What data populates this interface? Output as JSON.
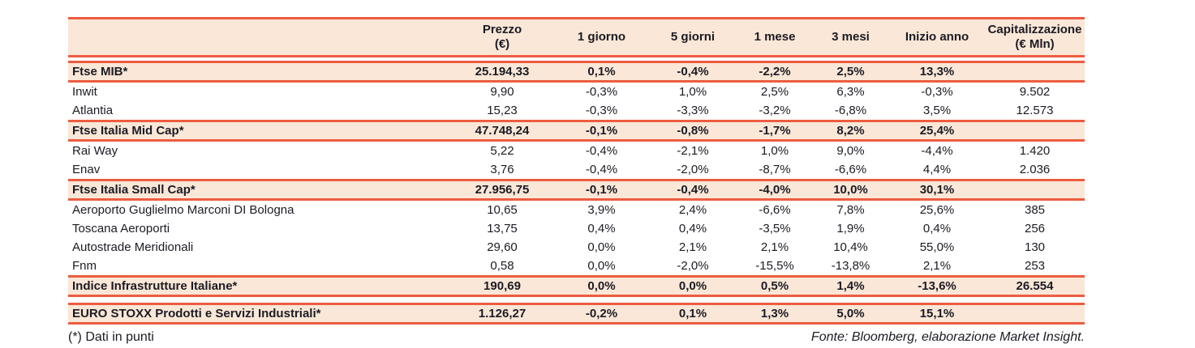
{
  "colors": {
    "accent_line": "#ed5c40",
    "band_background": "#fae7d7",
    "text": "#1b1b24"
  },
  "table": {
    "columns": [
      {
        "key": "name",
        "label": "",
        "sub": ""
      },
      {
        "key": "prezzo",
        "label": "Prezzo",
        "sub": "(€)"
      },
      {
        "key": "d1",
        "label": "1 giorno",
        "sub": ""
      },
      {
        "key": "d5",
        "label": "5 giorni",
        "sub": ""
      },
      {
        "key": "m1",
        "label": "1 mese",
        "sub": ""
      },
      {
        "key": "m3",
        "label": "3 mesi",
        "sub": ""
      },
      {
        "key": "ytd",
        "label": "Inizio anno",
        "sub": ""
      },
      {
        "key": "cap",
        "label": "Capitalizzazione",
        "sub": "(€ Mln)"
      }
    ],
    "rows": [
      {
        "type": "index",
        "name": "Ftse MIB*",
        "prezzo": "25.194,33",
        "d1": "0,1%",
        "d5": "-0,4%",
        "m1": "-2,2%",
        "m3": "2,5%",
        "ytd": "13,3%",
        "cap": ""
      },
      {
        "type": "stock",
        "name": "Inwit",
        "prezzo": "9,90",
        "d1": "-0,3%",
        "d5": "1,0%",
        "m1": "2,5%",
        "m3": "6,3%",
        "ytd": "-0,3%",
        "cap": "9.502"
      },
      {
        "type": "stock",
        "name": "Atlantia",
        "prezzo": "15,23",
        "d1": "-0,3%",
        "d5": "-3,3%",
        "m1": "-3,2%",
        "m3": "-6,8%",
        "ytd": "3,5%",
        "cap": "12.573"
      },
      {
        "type": "index",
        "name": "Ftse Italia Mid Cap*",
        "prezzo": "47.748,24",
        "d1": "-0,1%",
        "d5": "-0,8%",
        "m1": "-1,7%",
        "m3": "8,2%",
        "ytd": "25,4%",
        "cap": ""
      },
      {
        "type": "stock",
        "name": "Rai Way",
        "prezzo": "5,22",
        "d1": "-0,4%",
        "d5": "-2,1%",
        "m1": "1,0%",
        "m3": "9,0%",
        "ytd": "-4,4%",
        "cap": "1.420"
      },
      {
        "type": "stock",
        "name": "Enav",
        "prezzo": "3,76",
        "d1": "-0,4%",
        "d5": "-2,0%",
        "m1": "-8,7%",
        "m3": "-6,6%",
        "ytd": "4,4%",
        "cap": "2.036"
      },
      {
        "type": "index",
        "name": "Ftse Italia Small Cap*",
        "prezzo": "27.956,75",
        "d1": "-0,1%",
        "d5": "-0,4%",
        "m1": "-4,0%",
        "m3": "10,0%",
        "ytd": "30,1%",
        "cap": ""
      },
      {
        "type": "stock",
        "name": "Aeroporto Guglielmo Marconi DI Bologna",
        "prezzo": "10,65",
        "d1": "3,9%",
        "d5": "2,4%",
        "m1": "-6,6%",
        "m3": "7,8%",
        "ytd": "25,6%",
        "cap": "385"
      },
      {
        "type": "stock",
        "name": "Toscana Aeroporti",
        "prezzo": "13,75",
        "d1": "0,4%",
        "d5": "0,4%",
        "m1": "-3,5%",
        "m3": "1,9%",
        "ytd": "0,4%",
        "cap": "256"
      },
      {
        "type": "stock",
        "name": "Autostrade Meridionali",
        "prezzo": "29,60",
        "d1": "0,0%",
        "d5": "2,1%",
        "m1": "2,1%",
        "m3": "10,4%",
        "ytd": "55,0%",
        "cap": "130"
      },
      {
        "type": "stock",
        "name": "Fnm",
        "prezzo": "0,58",
        "d1": "0,0%",
        "d5": "-2,0%",
        "m1": "-15,5%",
        "m3": "-13,8%",
        "ytd": "2,1%",
        "cap": "253"
      },
      {
        "type": "index",
        "name": "Indice Infrastrutture Italiane*",
        "prezzo": "190,69",
        "d1": "0,0%",
        "d5": "0,0%",
        "m1": "0,5%",
        "m3": "1,4%",
        "ytd": "-13,6%",
        "cap": "26.554"
      },
      {
        "type": "index-separated",
        "name": "EURO STOXX Prodotti e Servizi Industriali*",
        "prezzo": "1.126,27",
        "d1": "-0,2%",
        "d5": "0,1%",
        "m1": "1,3%",
        "m3": "5,0%",
        "ytd": "15,1%",
        "cap": ""
      }
    ]
  },
  "footer": {
    "note": "(*) Dati in punti",
    "source": "Fonte: Bloomberg, elaborazione Market Insight."
  }
}
